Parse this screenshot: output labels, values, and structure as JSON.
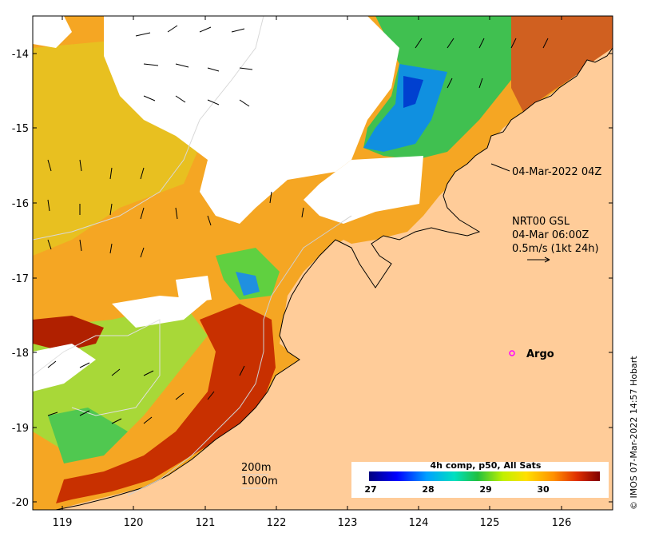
{
  "map": {
    "lon_ticks": [
      "119",
      "120",
      "121",
      "122",
      "123",
      "124",
      "125",
      "126"
    ],
    "lat_ticks": [
      "-14",
      "-15",
      "-16",
      "-17",
      "-18",
      "-19",
      "-20"
    ]
  },
  "annotations": {
    "timestamp": "04-Mar-2022 04Z",
    "current_model": "NRT00 GSL",
    "current_time": "04-Mar 06:00Z",
    "current_scale": "0.5m/s (1kt 24h)",
    "argo_label": "Argo"
  },
  "bathymetry_legend": {
    "contour_200": "200m",
    "contour_1000": "1000m"
  },
  "colorbar": {
    "title": "4h comp, p50, All Sats",
    "ticks": [
      "27",
      "28",
      "29",
      "30"
    ]
  },
  "credit": "© IMOS 07-Mar-2022 14:57 Hobart",
  "colors": {
    "land": "#ffcc99",
    "no_data": "#ffffff",
    "argo_marker": "#ff00ff"
  }
}
